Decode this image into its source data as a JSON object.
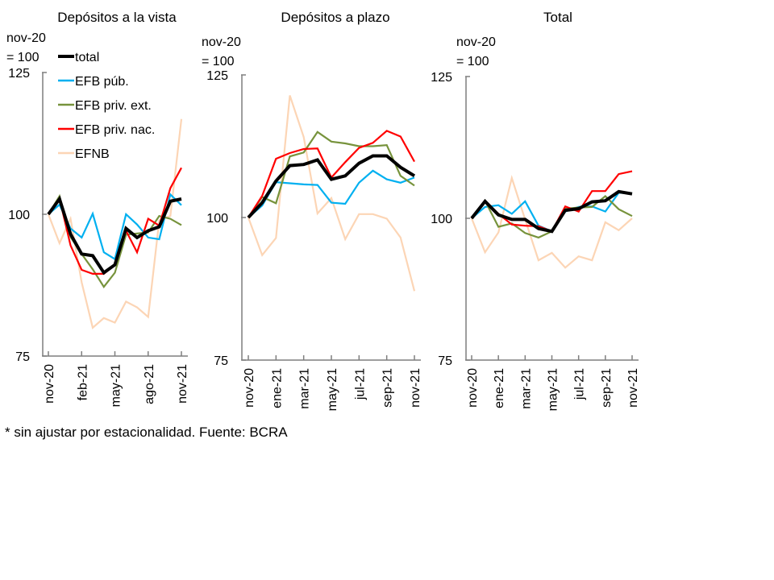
{
  "chart_data": [
    {
      "type": "line",
      "title": "Depósitos a la vista",
      "ylabel_lines": [
        "nov-20",
        "= 100"
      ],
      "ylim": [
        75,
        125
      ],
      "yticks": [
        75,
        100,
        125
      ],
      "x": [
        "nov-20",
        "dic-20",
        "ene-21",
        "feb-21",
        "mar-21",
        "abr-21",
        "may-21",
        "jun-21",
        "jul-21",
        "ago-21",
        "sep-21",
        "oct-21",
        "nov-21"
      ],
      "xtick_labels": [
        "nov-20",
        "feb-21",
        "may-21",
        "ago-21",
        "nov-21"
      ],
      "xtick_every": 3,
      "legend": "top-left",
      "series": [
        {
          "name": "total",
          "color": "#000000",
          "values": [
            100,
            102.7,
            96.5,
            93.0,
            92.7,
            89.7,
            91.1,
            97.5,
            95.9,
            97.1,
            97.8,
            102.3,
            102.7
          ]
        },
        {
          "name": "EFB púb.",
          "color": "#00B0F0",
          "values": [
            100,
            101.7,
            97.5,
            95.9,
            100.1,
            93.3,
            92.1,
            100,
            98.2,
            95.9,
            95.6,
            103.5,
            101.6
          ]
        },
        {
          "name": "EFB priv. ext.",
          "color": "#77933C",
          "values": [
            100,
            103.2,
            96.0,
            93.0,
            90.3,
            87.2,
            89.7,
            96.4,
            96.6,
            96.8,
            99.7,
            99.2,
            98.1
          ]
        },
        {
          "name": "EFB priv. nac.",
          "color": "#FF0000",
          "values": [
            100,
            102.8,
            94.5,
            90.2,
            89.5,
            89.5,
            91.1,
            97.1,
            93.3,
            99.2,
            98.0,
            104.6,
            108.2
          ]
        },
        {
          "name": "EFNB",
          "color": "#FCD5B5",
          "values": [
            100,
            94.9,
            99.2,
            88.0,
            80.0,
            81.7,
            80.9,
            84.6,
            83.6,
            81.9,
            98.9,
            99.7,
            116.8
          ]
        }
      ]
    },
    {
      "type": "line",
      "title": "Depósitos a plazo",
      "ylabel_lines": [
        "nov-20",
        "= 100"
      ],
      "ylim": [
        75,
        125
      ],
      "yticks": [
        75,
        100,
        125
      ],
      "x": [
        "nov-20",
        "dic-20",
        "ene-21",
        "feb-21",
        "mar-21",
        "abr-21",
        "may-21",
        "jun-21",
        "jul-21",
        "ago-21",
        "sep-21",
        "oct-21",
        "nov-21"
      ],
      "xtick_labels": [
        "nov-20",
        "ene-21",
        "mar-21",
        "may-21",
        "jul-21",
        "sep-21",
        "nov-21"
      ],
      "xtick_every": 2,
      "series": [
        {
          "name": "total",
          "color": "#000000",
          "values": [
            100,
            102.6,
            106.4,
            109.1,
            109.3,
            110.1,
            106.7,
            107.3,
            109.5,
            110.8,
            110.8,
            108.8,
            107.3
          ]
        },
        {
          "name": "EFB púb.",
          "color": "#00B0F0",
          "values": [
            100,
            102.1,
            106.2,
            106.0,
            105.8,
            105.7,
            102.6,
            102.4,
            106.1,
            108.2,
            106.7,
            106.1,
            107.0
          ]
        },
        {
          "name": "EFB priv. ext.",
          "color": "#77933C",
          "values": [
            100,
            103.6,
            102.5,
            110.7,
            111.4,
            115.0,
            113.3,
            113.0,
            112.5,
            112.5,
            112.7,
            107.3,
            105.6
          ]
        },
        {
          "name": "EFB priv. nac.",
          "color": "#FF0000",
          "values": [
            100,
            103.8,
            110.3,
            111.3,
            112.0,
            112.1,
            107.0,
            109.7,
            112.2,
            113.1,
            115.2,
            114.2,
            109.8
          ]
        },
        {
          "name": "EFNB",
          "color": "#FCD5B5",
          "values": [
            100,
            93.4,
            96.4,
            121.4,
            114.1,
            100.7,
            103.4,
            96.2,
            100.6,
            100.6,
            99.8,
            96.5,
            87.1
          ]
        }
      ]
    },
    {
      "type": "line",
      "title": "Total",
      "ylabel_lines": [
        "nov-20",
        "= 100"
      ],
      "ylim": [
        75,
        125
      ],
      "yticks": [
        75,
        100,
        125
      ],
      "x": [
        "nov-20",
        "dic-20",
        "ene-21",
        "feb-21",
        "mar-21",
        "abr-21",
        "may-21",
        "jun-21",
        "jul-21",
        "ago-21",
        "sep-21",
        "oct-21",
        "nov-21"
      ],
      "xtick_labels": [
        "nov-20",
        "ene-21",
        "mar-21",
        "may-21",
        "jul-21",
        "sep-21",
        "nov-21"
      ],
      "xtick_every": 2,
      "series": [
        {
          "name": "total",
          "color": "#000000",
          "values": [
            100,
            103.0,
            100.6,
            99.8,
            99.8,
            98.2,
            97.7,
            101.4,
            101.7,
            102.9,
            103.1,
            104.7,
            104.3
          ]
        },
        {
          "name": "EFB púb.",
          "color": "#00B0F0",
          "values": [
            100,
            102.0,
            102.3,
            100.8,
            103.0,
            98.7,
            97.7,
            101.2,
            102.0,
            102.1,
            101.2,
            104.5,
            104.4
          ]
        },
        {
          "name": "EFB priv. ext.",
          "color": "#77933C",
          "values": [
            100,
            103.1,
            98.5,
            99.1,
            97.4,
            96.6,
            97.7,
            101.7,
            101.9,
            102.0,
            103.9,
            101.6,
            100.4
          ]
        },
        {
          "name": "EFB priv. nac.",
          "color": "#FF0000",
          "values": [
            100,
            103.1,
            100.8,
            98.9,
            98.7,
            98.6,
            97.7,
            102.1,
            101.2,
            104.8,
            104.8,
            107.8,
            108.3
          ]
        },
        {
          "name": "EFNB",
          "color": "#FCD5B5",
          "values": [
            100,
            94.0,
            97.5,
            107.1,
            99.8,
            92.6,
            93.9,
            91.3,
            93.3,
            92.6,
            99.3,
            97.9,
            100.0
          ]
        }
      ]
    }
  ],
  "footnote": "* sin ajustar por estacionalidad. Fuente: BCRA"
}
